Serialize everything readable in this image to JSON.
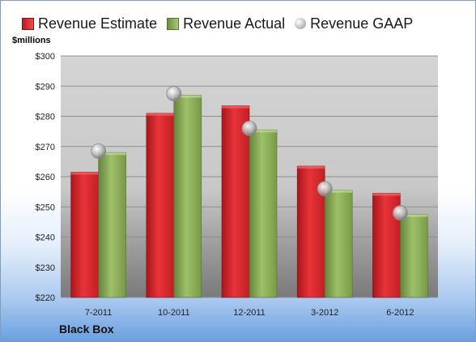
{
  "chart_data": {
    "type": "bar",
    "title": "",
    "company": "Black Box",
    "ylabel": "$millions",
    "xlabel": "",
    "ylim": [
      220,
      300
    ],
    "yticks": [
      220,
      230,
      240,
      250,
      260,
      270,
      280,
      290,
      300
    ],
    "ytick_labels": [
      "$220",
      "$230",
      "$240",
      "$250",
      "$260",
      "$270",
      "$280",
      "$290",
      "$300"
    ],
    "categories": [
      "7-2011",
      "10-2011",
      "12-2011",
      "3-2012",
      "6-2012"
    ],
    "series": [
      {
        "name": "Revenue Estimate",
        "type": "bar",
        "color": "#d9262b",
        "values": [
          261.5,
          281,
          283.5,
          263.5,
          254.5
        ]
      },
      {
        "name": "Revenue Actual",
        "type": "bar",
        "color": "#8db05a",
        "values": [
          268,
          287,
          275.5,
          255.5,
          247.5
        ]
      },
      {
        "name": "Revenue GAAP",
        "type": "marker",
        "color": "#c8c8c8",
        "values": [
          268.5,
          287.5,
          276,
          256,
          248
        ]
      }
    ],
    "legend_position": "top",
    "grid": true
  }
}
